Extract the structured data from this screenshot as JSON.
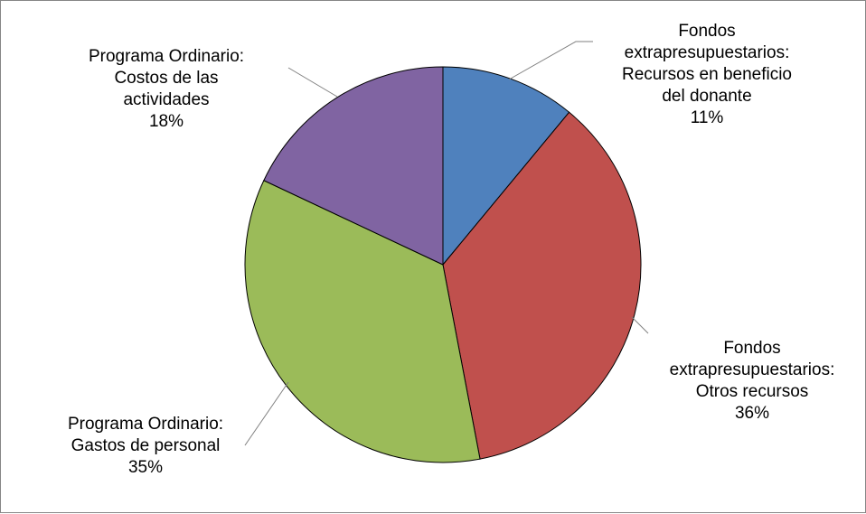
{
  "chart_data": {
    "type": "pie",
    "title": "",
    "slices": [
      {
        "label_lines": [
          "Fondos",
          "extrapresupuestarios:",
          "Recursos en beneficio",
          "del donante"
        ],
        "percent_label": "11%",
        "value": 11,
        "color": "#4F81BD"
      },
      {
        "label_lines": [
          "Fondos",
          "extrapresupuestarios:",
          "Otros recursos"
        ],
        "percent_label": "36%",
        "value": 36,
        "color": "#C0504D"
      },
      {
        "label_lines": [
          "Programa Ordinario:",
          "Gastos de personal"
        ],
        "percent_label": "35%",
        "value": 35,
        "color": "#9BBB59"
      },
      {
        "label_lines": [
          "Programa Ordinario:",
          "Costos de las",
          "actividades"
        ],
        "percent_label": "18%",
        "value": 18,
        "color": "#8064A2"
      }
    ]
  }
}
